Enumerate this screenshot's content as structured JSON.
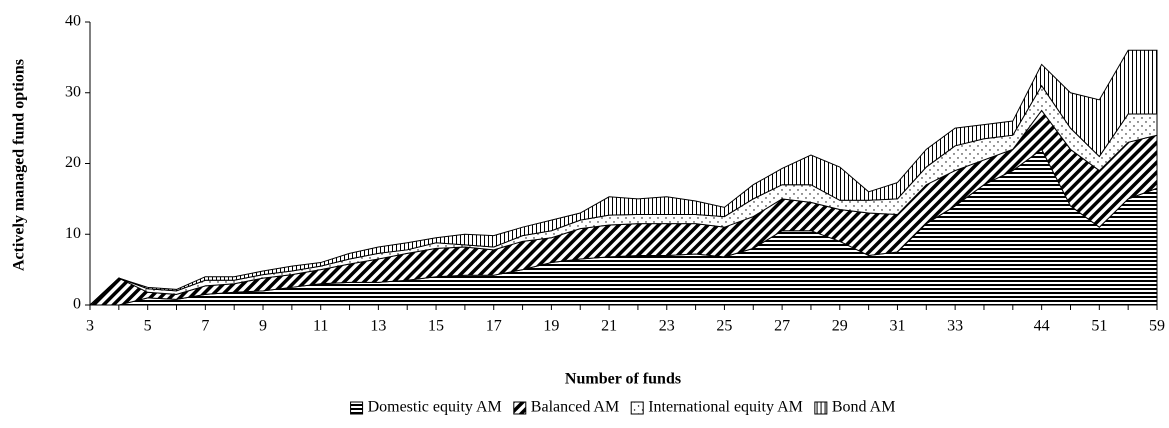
{
  "chart_data": {
    "type": "stacked_area",
    "x_label": "Number of funds",
    "y_label": "Actively managed fund options",
    "categories": [
      3,
      null,
      5,
      null,
      7,
      null,
      9,
      null,
      11,
      null,
      13,
      null,
      15,
      null,
      17,
      null,
      19,
      null,
      21,
      null,
      23,
      null,
      25,
      null,
      27,
      null,
      29,
      null,
      31,
      null,
      33,
      null,
      null,
      44,
      null,
      51,
      null,
      59
    ],
    "series": [
      {
        "name": "Domestic equity AM",
        "pattern": "horizontal",
        "values": [
          0,
          0,
          1.0,
          0.8,
          1.5,
          1.8,
          2.0,
          2.5,
          3.0,
          3.2,
          3.2,
          3.5,
          4.0,
          4.2,
          4.2,
          5.0,
          6.0,
          6.5,
          6.8,
          7.0,
          7.0,
          7.2,
          6.8,
          8.0,
          10.5,
          10.5,
          9.0,
          7.0,
          7.5,
          11.5,
          14.0,
          17.0,
          19.0,
          22.0,
          14.0,
          11.0,
          15.0,
          16.5
        ]
      },
      {
        "name": "Balanced AM",
        "pattern": "diagonal",
        "values": [
          0,
          3.8,
          0.8,
          0.7,
          1.2,
          1.2,
          1.8,
          1.8,
          2.0,
          2.6,
          3.3,
          3.8,
          4.0,
          4.0,
          3.6,
          4.0,
          3.5,
          4.3,
          4.5,
          4.5,
          4.5,
          4.3,
          4.2,
          4.5,
          4.5,
          4.0,
          4.5,
          6.0,
          5.3,
          5.5,
          5.0,
          3.5,
          3.0,
          5.5,
          8.0,
          8.0,
          8.0,
          7.5
        ]
      },
      {
        "name": "International equity AM",
        "pattern": "dots",
        "values": [
          0,
          0,
          0.5,
          0.5,
          0.8,
          0.5,
          0.5,
          0.5,
          0.5,
          0.7,
          0.8,
          0.5,
          0.8,
          0.3,
          0.4,
          0.8,
          1.0,
          1.2,
          1.4,
          1.3,
          1.3,
          1.3,
          1.5,
          2.5,
          2.0,
          2.5,
          1.3,
          1.8,
          2.2,
          2.5,
          3.5,
          3.0,
          2.0,
          3.5,
          3.0,
          2.0,
          4.0,
          3.0
        ]
      },
      {
        "name": "Bond AM",
        "pattern": "vertical",
        "values": [
          0,
          0,
          0.2,
          0.2,
          0.5,
          0.5,
          0.5,
          0.7,
          0.5,
          0.8,
          0.9,
          1.0,
          0.7,
          1.5,
          1.6,
          1.2,
          1.5,
          1.0,
          2.6,
          2.2,
          2.5,
          1.9,
          1.3,
          2.0,
          2.3,
          4.2,
          4.7,
          1.2,
          2.3,
          2.5,
          2.5,
          2.0,
          2.0,
          3.0,
          5.0,
          8.0,
          9.0,
          9.0
        ]
      }
    ],
    "ylim": [
      0,
      40
    ],
    "yticks": [
      0,
      10,
      20,
      30,
      40
    ],
    "grid": false,
    "legend": "bottom"
  }
}
